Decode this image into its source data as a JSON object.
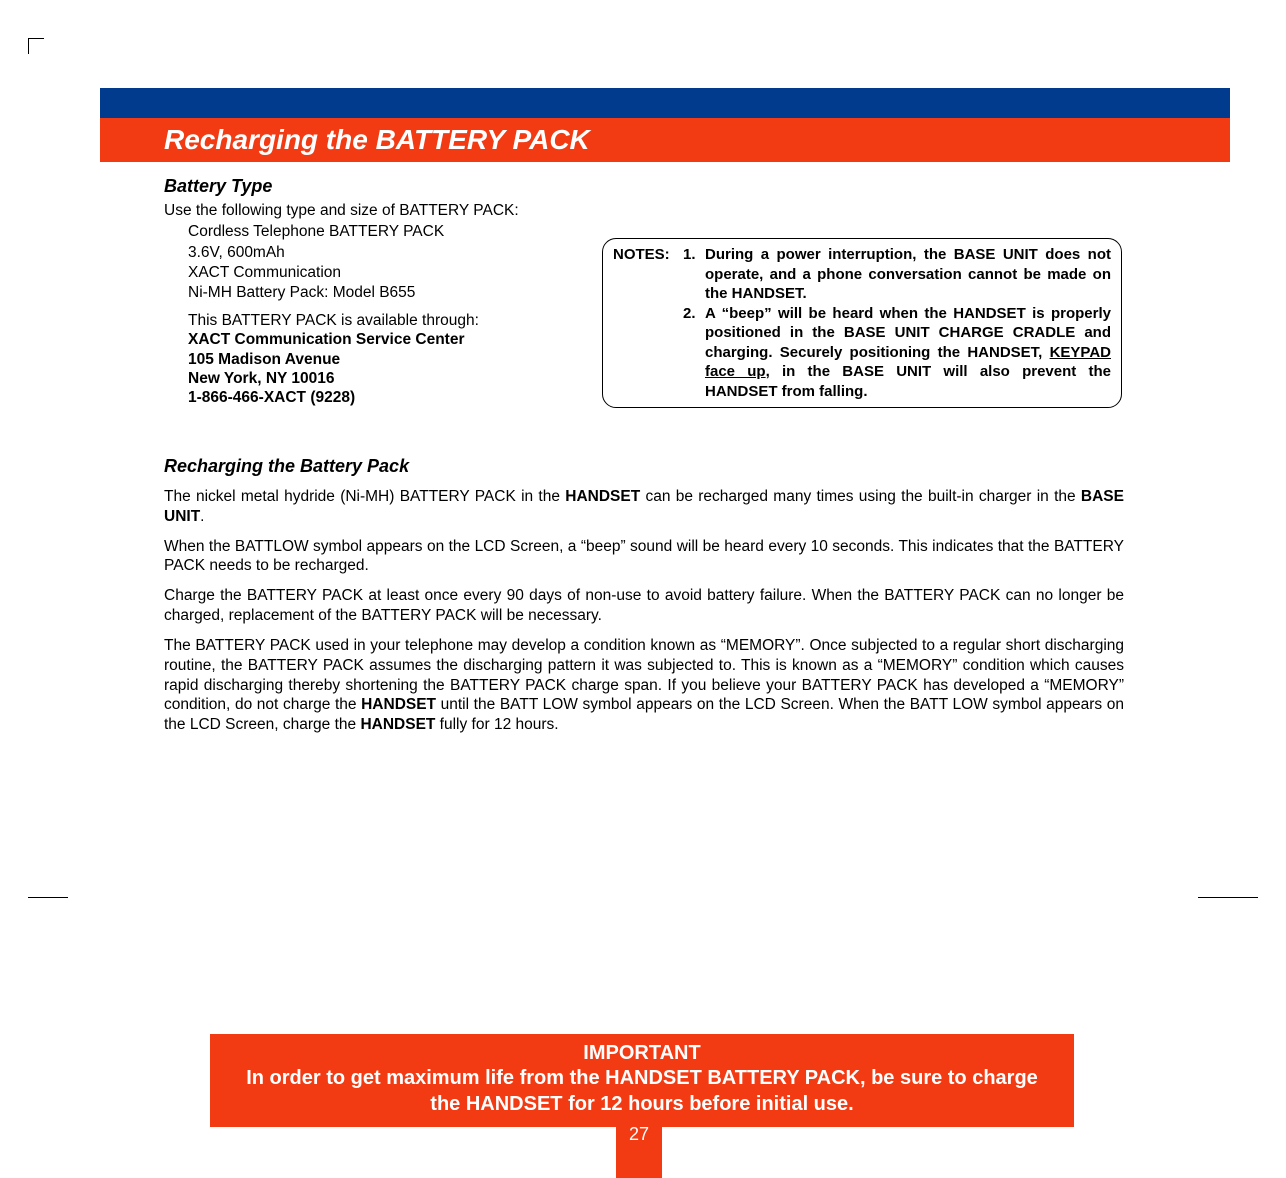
{
  "colors": {
    "orange": "#f23b12",
    "blue": "#003b8e",
    "white": "#ffffff",
    "black": "#000000"
  },
  "title": "Recharging the BATTERY PACK",
  "battery_type": {
    "heading": "Battery Type",
    "intro": "Use the following type and size of BATTERY PACK:",
    "lines": [
      "Cordless Telephone BATTERY PACK",
      "3.6V, 600mAh",
      "XACT Communication",
      "Ni-MH Battery Pack: Model B655"
    ],
    "available_through": "This BATTERY PACK is available through:",
    "service_center": "XACT Communication Service Center",
    "address1": "105 Madison Avenue",
    "address2": "New York, NY 10016",
    "phone": "1-866-466-XACT (9228)"
  },
  "notes": {
    "label": "NOTES:",
    "item1_num": "1.",
    "item1": "During a power interruption, the BASE UNIT does not operate, and a phone conversation cannot be made on the HANDSET.",
    "item2_num": "2.",
    "item2_a": "A “beep” will be heard when the HANDSET is properly positioned in the BASE UNIT CHARGE CRADLE and charging. Securely positioning the HANDSET, ",
    "item2_underline": "KEYPAD face up",
    "item2_b": ", in the BASE UNIT will also prevent the HANDSET from falling."
  },
  "recharging": {
    "heading": "Recharging the Battery Pack",
    "p1_a": "The nickel metal hydride (Ni-MH) BATTERY PACK in the ",
    "p1_bold1": "HANDSET",
    "p1_b": " can be recharged many times using the built-in charger in the ",
    "p1_bold2": "BASE UNIT",
    "p1_c": ".",
    "p2": "When the BATTLOW symbol appears on the LCD Screen, a “beep” sound will be heard every 10 seconds. This indicates that the BATTERY PACK needs to be recharged.",
    "p3": "Charge the BATTERY PACK at least once every 90 days of non-use to avoid battery failure. When the BATTERY PACK can no longer be charged, replacement of the BATTERY PACK will be necessary.",
    "p4_a": "The BATTERY PACK used in your telephone may develop a condition known as “MEMORY”. Once subjected to a regular short discharging routine, the BATTERY PACK assumes the discharging pattern it was subjected to. This is known as a “MEMORY” condition which causes rapid discharging thereby shortening the BATTERY PACK charge span. If you believe your BATTERY PACK has developed a “MEMORY” condition, do not charge the ",
    "p4_bold1": "HANDSET",
    "p4_b": " until the BATT  LOW symbol appears on the LCD Screen. When the BATT LOW symbol appears on the LCD Screen, charge the ",
    "p4_bold2": "HANDSET",
    "p4_c": " fully for 12 hours."
  },
  "important": {
    "title": "IMPORTANT",
    "body": "In order to get maximum life from the HANDSET BATTERY PACK, be sure to charge the HANDSET for 12 hours before initial use."
  },
  "page_number": "27"
}
